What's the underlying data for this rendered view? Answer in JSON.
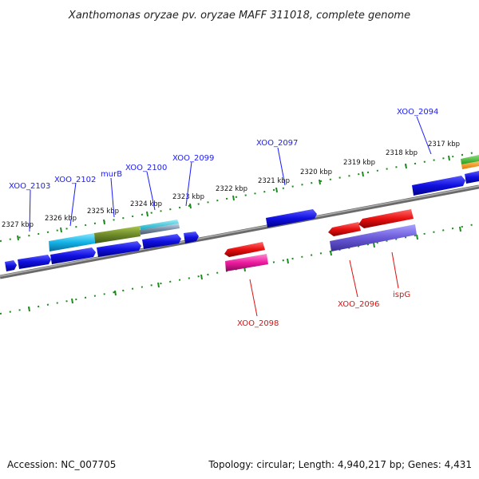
{
  "title": "Xanthomonas oryzae pv. oryzae MAFF 311018, complete genome",
  "footer": {
    "accession": "Accession: NC_007705",
    "topology": "Topology: circular; Length: 4,940,217 bp; Genes: 4,431"
  },
  "kbp_ticks": [
    "2317 kbp",
    "2318 kbp",
    "2319 kbp",
    "2320 kbp",
    "2321 kbp",
    "2322 kbp",
    "2323 kbp",
    "2324 kbp",
    "2325 kbp",
    "2326 kbp",
    "2327 kbp"
  ],
  "gene_labels": [
    {
      "name": "XOO_2094",
      "strand": "forward"
    },
    {
      "name": "XOO_2097",
      "strand": "forward"
    },
    {
      "name": "XOO_2099",
      "strand": "forward"
    },
    {
      "name": "XOO_2100",
      "strand": "forward"
    },
    {
      "name": "murB",
      "strand": "forward"
    },
    {
      "name": "XOO_2102",
      "strand": "forward"
    },
    {
      "name": "XOO_2103",
      "strand": "forward"
    },
    {
      "name": "XOO_2098",
      "strand": "reverse"
    },
    {
      "name": "XOO_2096",
      "strand": "reverse"
    },
    {
      "name": "ispG",
      "strand": "reverse"
    }
  ],
  "colors": {
    "forward_gene": "#1010e0",
    "reverse_gene": "#e81010",
    "label_forward": "#1a1aff",
    "label_reverse": "#e01010",
    "backbone": "#888888",
    "tick": "#1f8a1f"
  }
}
